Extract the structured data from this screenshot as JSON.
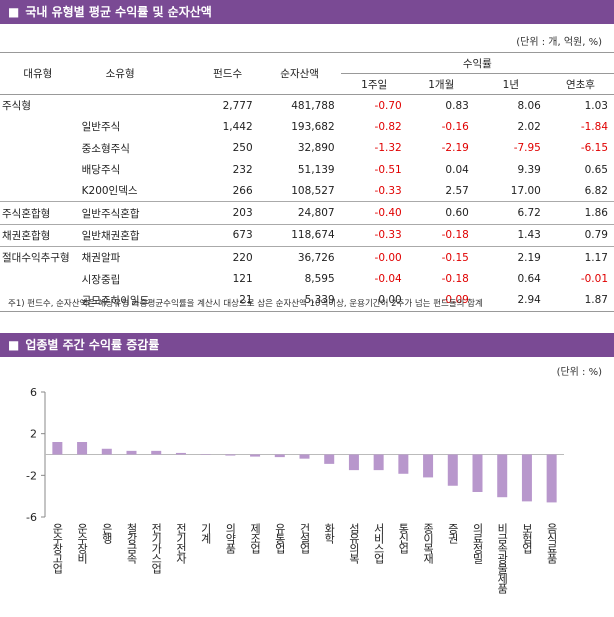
{
  "section1": {
    "title": "국내 유형별 평균 수익률 및 순자산액",
    "unit": "(단위 : 개, 억원, %)",
    "table": {
      "header": [
        "대유형",
        "소유형",
        "펀드수",
        "순자산액",
        "수익률"
      ],
      "subheader": [
        "1주일",
        "1개월",
        "1년",
        "연초후"
      ],
      "rows": [
        [
          "주식형",
          null,
          "2,777",
          "481,788",
          "-0.70",
          "0.83",
          "8.06",
          "1.03"
        ],
        [
          null,
          "일반주식",
          "1,442",
          "193,682",
          "-0.82",
          "-0.16",
          "2.02",
          "-1.84"
        ],
        [
          null,
          "중소형주식",
          "250",
          "32,890",
          "-1.32",
          "-2.19",
          "-7.95",
          "-6.15"
        ],
        [
          null,
          "배당주식",
          "232",
          "51,139",
          "-0.51",
          "0.04",
          "9.39",
          "0.65"
        ],
        [
          null,
          "K200인덱스",
          "266",
          "108,527",
          "-0.33",
          "2.57",
          "17.00",
          "6.82"
        ],
        [
          "주식혼합형",
          "일반주식혼합",
          "203",
          "24,807",
          "-0.40",
          "0.60",
          "6.72",
          "1.86"
        ],
        [
          "채권혼합형",
          "일반채권혼합",
          "673",
          "118,674",
          "-0.33",
          "-0.18",
          "1.43",
          "0.79"
        ],
        [
          "절대수익추구형",
          "채권알파",
          "220",
          "36,726",
          "-0.00",
          "-0.15",
          "2.19",
          "1.17"
        ],
        [
          null,
          "시장중립",
          "121",
          "8,595",
          "-0.04",
          "-0.18",
          "0.64",
          "-0.01"
        ],
        [
          null,
          "공모주하이일드",
          "21",
          "5,339",
          "0.00",
          "-0.09",
          "2.94",
          "1.87"
        ]
      ]
    },
    "footnote": "주1) 펀드수, 순자산액은 해당유형 가중평균수익률을 계산시 대상으로 삼은 순자산액 10억이상, 운용기간이 2주가 넘는 펀드들의 합계"
  },
  "section2": {
    "title": "업종별 주간 수익률 증감률",
    "unit": "(단위 : %)"
  },
  "chart_data": {
    "type": "bar",
    "color": "#b897cc",
    "categories": [
      "운수창고업",
      "운수장비",
      "은행",
      "철강금속",
      "전기가스업",
      "전기전자",
      "기계",
      "의약품",
      "제조업",
      "유통업",
      "건설업",
      "화학",
      "섬유의복",
      "서비스업",
      "통신업",
      "종이목재",
      "증권",
      "의료정밀",
      "비금속광물제품",
      "보험업",
      "음식료품"
    ],
    "values": [
      1.2,
      1.2,
      0.55,
      0.35,
      0.35,
      0.15,
      -0.02,
      -0.1,
      -0.2,
      -0.25,
      -0.4,
      -0.9,
      -1.5,
      -1.5,
      -1.85,
      -2.2,
      -3.0,
      -3.6,
      -4.1,
      -4.5,
      -4.6
    ],
    "ylim": [
      -6,
      6
    ],
    "yticks": [
      6,
      2,
      -2,
      -6
    ]
  }
}
